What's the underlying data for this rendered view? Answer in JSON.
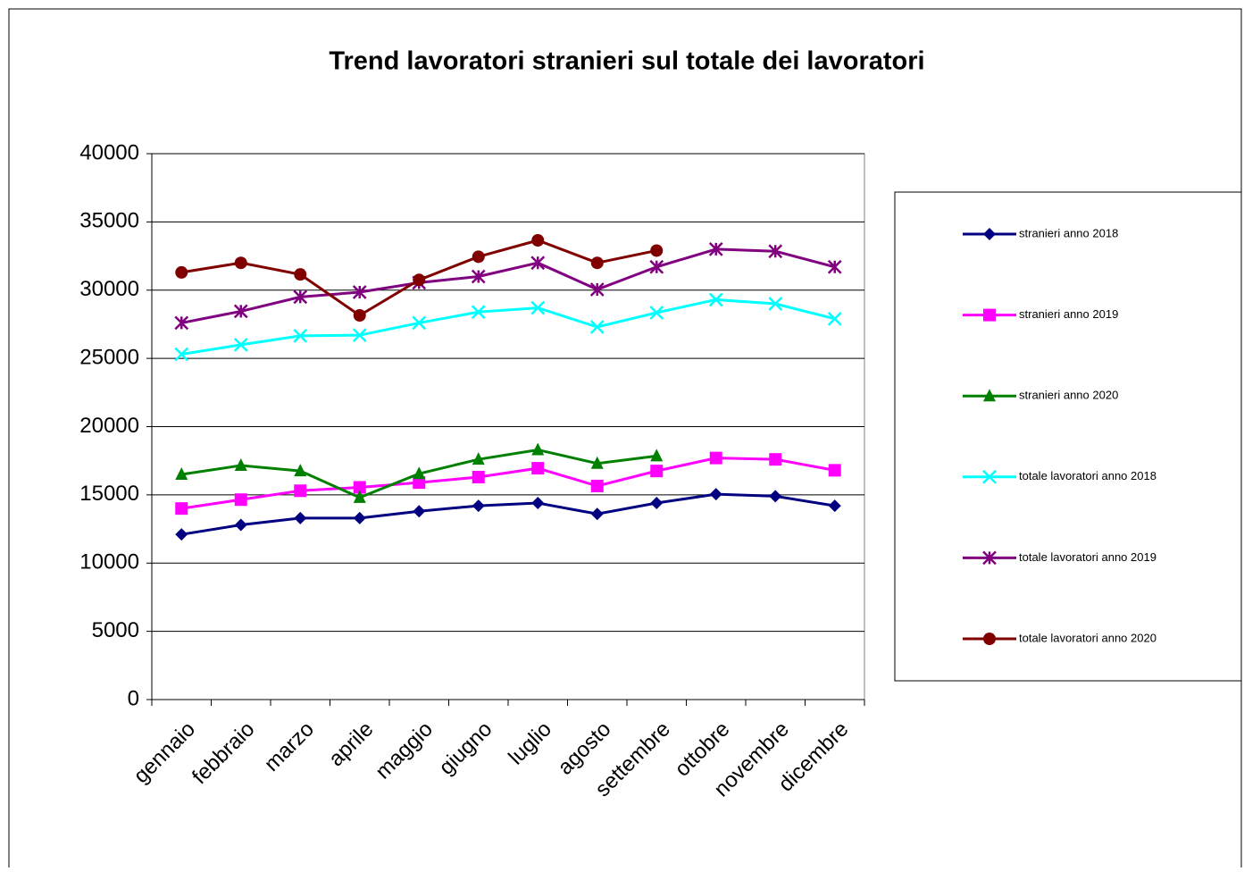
{
  "chart_data": {
    "type": "line",
    "title": "Trend lavoratori stranieri sul totale dei lavoratori",
    "categories": [
      "gennaio",
      "febbraio",
      "marzo",
      "aprile",
      "maggio",
      "giugno",
      "luglio",
      "agosto",
      "settembre",
      "ottobre",
      "novembre",
      "dicembre"
    ],
    "ylim": [
      0,
      40000
    ],
    "yticks": [
      0,
      5000,
      10000,
      15000,
      20000,
      25000,
      30000,
      35000,
      40000
    ],
    "grid": true,
    "legend": "right",
    "series": [
      {
        "name": "stranieri anno 2018",
        "color": "#000080",
        "marker": "diamond",
        "values": [
          12100,
          12800,
          13300,
          13300,
          13800,
          14200,
          14400,
          13600,
          14400,
          15050,
          14900,
          14200
        ]
      },
      {
        "name": "stranieri anno 2019",
        "color": "#ff00ff",
        "marker": "square",
        "values": [
          14000,
          14650,
          15300,
          15550,
          15900,
          16300,
          16950,
          15650,
          16750,
          17700,
          17600,
          16800
        ]
      },
      {
        "name": "stranieri anno 2020",
        "color": "#008000",
        "marker": "triangle",
        "values": [
          16500,
          17150,
          16750,
          14800,
          16550,
          17600,
          18300,
          17300,
          17850,
          null,
          null,
          null
        ]
      },
      {
        "name": "totale lavoratori anno 2018",
        "color": "#00ffff",
        "marker": "x",
        "values": [
          25300,
          26000,
          26650,
          26700,
          27600,
          28400,
          28700,
          27300,
          28350,
          29300,
          29000,
          27900
        ]
      },
      {
        "name": "totale lavoratori anno 2019",
        "color": "#800080",
        "marker": "asterisk",
        "values": [
          27600,
          28450,
          29500,
          29850,
          30550,
          31000,
          32000,
          30050,
          31700,
          33000,
          32850,
          31700
        ]
      },
      {
        "name": "totale lavoratori anno 2020",
        "color": "#800000",
        "marker": "circle",
        "values": [
          31300,
          32000,
          31150,
          28150,
          30750,
          32450,
          33650,
          32000,
          32900,
          null,
          null,
          null
        ]
      }
    ]
  }
}
